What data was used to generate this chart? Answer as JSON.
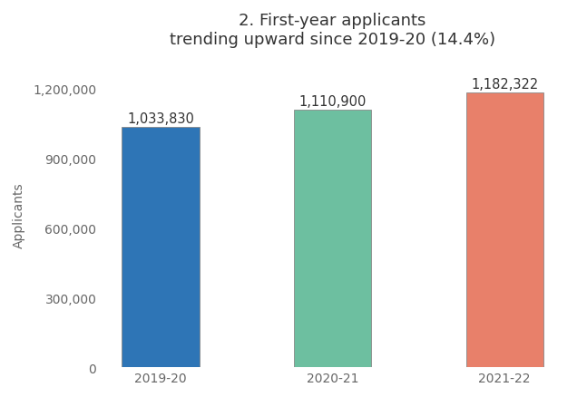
{
  "categories": [
    "2019-20",
    "2020-21",
    "2021-22"
  ],
  "values": [
    1033830,
    1110900,
    1182322
  ],
  "bar_colors": [
    "#2e75b6",
    "#6dbfa0",
    "#e8806a"
  ],
  "bar_edge_colors": [
    "#888888",
    "#888888",
    "#888888"
  ],
  "bar_labels": [
    "1,033,830",
    "1,110,900",
    "1,182,322"
  ],
  "title_line1": "2. First-year applicants",
  "title_line2": "trending upward since 2019-20 (14.4%)",
  "ylabel": "Applicants",
  "ylim": [
    0,
    1320000
  ],
  "yticks": [
    0,
    300000,
    600000,
    900000,
    1200000
  ],
  "ytick_labels": [
    "0",
    "300,000",
    "600,000",
    "900,000",
    "1,200,000"
  ],
  "background_color": "#ffffff",
  "title_fontsize": 13,
  "label_fontsize": 10.5,
  "ylabel_fontsize": 10,
  "tick_fontsize": 10,
  "bar_width": 0.45
}
